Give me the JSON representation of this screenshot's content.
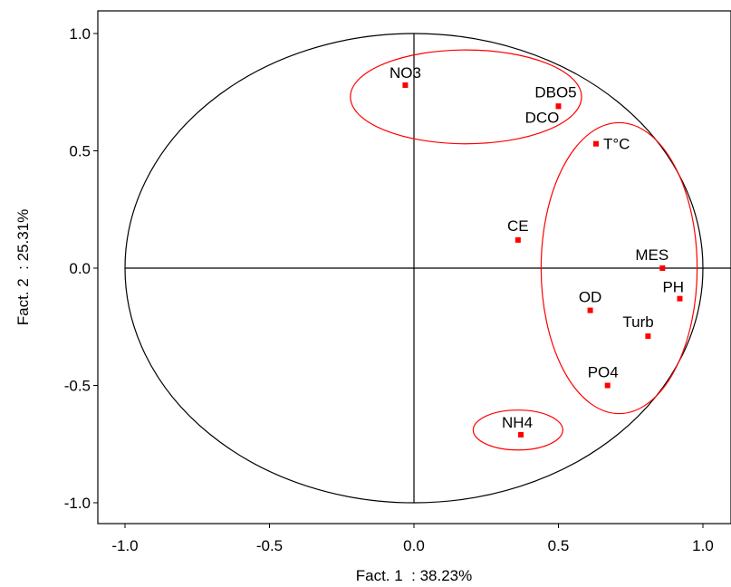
{
  "chart_data": {
    "type": "scatter",
    "xlabel": "Fact. 1  : 38.23%",
    "ylabel": "Fact. 2  : 25.31%",
    "xlim": [
      -1.1,
      1.1
    ],
    "ylim": [
      -1.1,
      1.1
    ],
    "xticks": [
      "-1.0",
      "-0.5",
      "0.0",
      "0.5",
      "1.0"
    ],
    "yticks": [
      "1.0",
      "0.5",
      "0.0",
      "-0.5",
      "-1.0"
    ],
    "unit_circle": true,
    "points": [
      {
        "label": "NO3",
        "x": -0.03,
        "y": 0.78
      },
      {
        "label": "DBO5",
        "x": 0.5,
        "y": 0.69
      },
      {
        "label": "DCO",
        "x": 0.5,
        "y": 0.69
      },
      {
        "label": "T°C",
        "x": 0.63,
        "y": 0.53
      },
      {
        "label": "CE",
        "x": 0.36,
        "y": 0.12
      },
      {
        "label": "MES",
        "x": 0.86,
        "y": 0.0
      },
      {
        "label": "PH",
        "x": 0.92,
        "y": -0.13
      },
      {
        "label": "OD",
        "x": 0.61,
        "y": -0.18
      },
      {
        "label": "Turb",
        "x": 0.81,
        "y": -0.29
      },
      {
        "label": "PO4",
        "x": 0.67,
        "y": -0.5
      },
      {
        "label": "NH4",
        "x": 0.37,
        "y": -0.71
      }
    ],
    "groups": [
      {
        "members": [
          "NO3",
          "DBO5",
          "DCO"
        ],
        "cx": 0.18,
        "cy": 0.73,
        "rx": 0.4,
        "ry": 0.2
      },
      {
        "members": [
          "T°C",
          "MES",
          "PH",
          "OD",
          "Turb",
          "PO4"
        ],
        "cx": 0.71,
        "cy": 0.0,
        "rx": 0.27,
        "ry": 0.62
      },
      {
        "members": [
          "NH4"
        ],
        "cx": 0.36,
        "cy": -0.69,
        "rx": 0.155,
        "ry": 0.085
      }
    ],
    "colors": {
      "point": "#ff0000",
      "group_ellipse": "#ff0000",
      "axis": "#000000"
    }
  }
}
